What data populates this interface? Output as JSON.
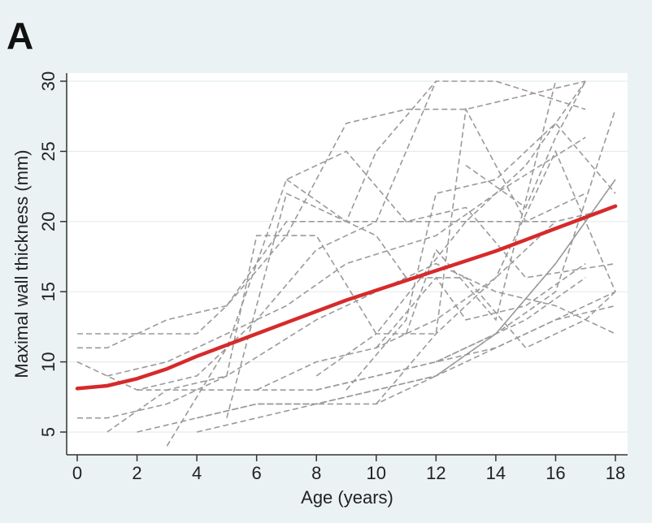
{
  "panel_label": "A",
  "chart_data": {
    "type": "line",
    "title": "",
    "xlabel": "Age (years)",
    "ylabel": "Maximal wall thickness (mm)",
    "xlim": [
      0,
      18
    ],
    "ylim": [
      4.5,
      30
    ],
    "x_ticks": [
      0,
      2,
      4,
      6,
      8,
      10,
      12,
      14,
      16,
      18
    ],
    "y_ticks": [
      5,
      10,
      15,
      20,
      25,
      30
    ],
    "grid": "horizontal",
    "legend": "none",
    "colors": {
      "individual": "#9a9a9a",
      "mean": "#d62a2a",
      "background": "#eaf2f3",
      "plot": "#ffffff"
    },
    "mean_curve": {
      "x": [
        0,
        1,
        2,
        3,
        4,
        5,
        6,
        7,
        8,
        9,
        10,
        11,
        12,
        13,
        14,
        15,
        16,
        17,
        18
      ],
      "y": [
        8.1,
        8.3,
        8.8,
        9.5,
        10.4,
        11.2,
        12.0,
        12.8,
        13.6,
        14.4,
        15.1,
        15.8,
        16.5,
        17.2,
        17.9,
        18.7,
        19.5,
        20.3,
        21.1
      ]
    },
    "series": [
      {
        "x": [
          0,
          2,
          4,
          5,
          7,
          9,
          12,
          16,
          18
        ],
        "y": [
          12,
          12,
          12,
          14,
          20,
          20,
          20,
          20,
          21
        ]
      },
      {
        "x": [
          0,
          1,
          3,
          5,
          7,
          9,
          11,
          13,
          15,
          17
        ],
        "y": [
          11,
          11,
          13,
          14,
          19,
          27,
          28,
          28,
          29,
          30
        ]
      },
      {
        "x": [
          0,
          2,
          4,
          6,
          8,
          10,
          12
        ],
        "y": [
          10,
          8,
          9,
          13,
          18,
          20,
          30
        ]
      },
      {
        "x": [
          0,
          1,
          3,
          5,
          8,
          10,
          12,
          14,
          16,
          18
        ],
        "y": [
          6,
          6,
          7,
          9,
          13,
          15,
          17,
          15,
          14,
          12
        ]
      },
      {
        "x": [
          1,
          3,
          5,
          7,
          9,
          12,
          14,
          17
        ],
        "y": [
          9,
          10,
          12,
          14,
          17,
          19,
          22,
          26
        ]
      },
      {
        "x": [
          2,
          4,
          6,
          8,
          10,
          12,
          14,
          16,
          18
        ],
        "y": [
          5,
          6,
          7,
          7,
          8,
          9,
          12,
          15,
          28
        ]
      },
      {
        "x": [
          2,
          4,
          6,
          8,
          10,
          12,
          15,
          17
        ],
        "y": [
          8,
          8,
          8,
          8,
          9,
          10,
          13,
          16
        ]
      },
      {
        "x": [
          1,
          3,
          5,
          6,
          8,
          10,
          13,
          15,
          17
        ],
        "y": [
          5,
          8,
          9,
          19,
          19,
          12,
          20,
          24,
          30
        ]
      },
      {
        "x": [
          3,
          5,
          7,
          9,
          11,
          13,
          15,
          18
        ],
        "y": [
          4,
          11,
          23,
          25,
          20,
          21,
          16,
          17
        ]
      },
      {
        "x": [
          4,
          6,
          8,
          10,
          12,
          14,
          16,
          18
        ],
        "y": [
          5,
          6,
          7,
          7,
          9,
          12,
          17,
          23
        ]
      },
      {
        "x": [
          4,
          6,
          8,
          10,
          12,
          14,
          16,
          18
        ],
        "y": [
          6,
          7,
          7,
          8,
          9,
          11,
          13,
          15
        ]
      },
      {
        "x": [
          5,
          7,
          9,
          10,
          12,
          14,
          17
        ],
        "y": [
          6,
          22,
          20,
          25,
          30,
          30,
          28
        ]
      },
      {
        "x": [
          6,
          8,
          10,
          12,
          14,
          16
        ],
        "y": [
          8,
          10,
          11,
          13,
          16,
          20
        ]
      },
      {
        "x": [
          7,
          9,
          10,
          11,
          13,
          15,
          17,
          18
        ],
        "y": [
          23,
          20,
          19,
          16,
          16,
          11,
          13,
          15
        ]
      },
      {
        "x": [
          8,
          10,
          12,
          14,
          16,
          18
        ],
        "y": [
          8,
          9,
          10,
          11,
          13,
          14
        ]
      },
      {
        "x": [
          8,
          10,
          12,
          13,
          15,
          17
        ],
        "y": [
          9,
          12,
          12,
          28,
          20,
          22
        ]
      },
      {
        "x": [
          9,
          11,
          12,
          14,
          16,
          18
        ],
        "y": [
          8,
          13,
          22,
          23,
          27,
          22
        ]
      },
      {
        "x": [
          10,
          12,
          14,
          16,
          18
        ],
        "y": [
          7,
          12,
          16,
          25,
          15
        ]
      },
      {
        "x": [
          10,
          12,
          13,
          15,
          17
        ],
        "y": [
          11,
          16,
          13,
          14,
          17
        ]
      },
      {
        "x": [
          11,
          12,
          14,
          16
        ],
        "y": [
          12,
          18,
          13,
          30
        ]
      },
      {
        "x": [
          12,
          14,
          16,
          18
        ],
        "y": [
          10,
          12,
          17,
          23
        ]
      },
      {
        "x": [
          13,
          15,
          16,
          17
        ],
        "y": [
          24,
          21,
          26,
          30
        ]
      }
    ]
  }
}
